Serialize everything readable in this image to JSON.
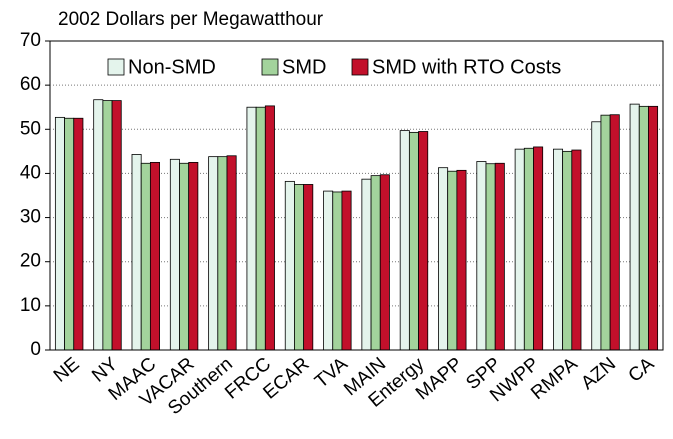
{
  "chart_data": {
    "type": "bar",
    "ylabel": "2002 Dollars per Megawatthour",
    "categories": [
      "NE",
      "NY",
      "MAAC",
      "VACAR",
      "Southern",
      "FRCC",
      "ECAR",
      "TVA",
      "MAIN",
      "Entergy",
      "MAPP",
      "SPP",
      "NWPP",
      "RMPA",
      "AZN",
      "CA"
    ],
    "series": [
      {
        "name": "Non-SMD",
        "color": "#e4f4ec",
        "values": [
          52.7,
          56.7,
          44.3,
          43.2,
          43.8,
          55.0,
          38.2,
          36.0,
          38.7,
          49.7,
          41.3,
          42.7,
          45.5,
          45.5,
          51.7,
          55.7
        ]
      },
      {
        "name": "SMD",
        "color": "#a3d39c",
        "values": [
          52.5,
          56.5,
          42.3,
          42.3,
          43.8,
          55.0,
          37.5,
          35.8,
          39.5,
          49.3,
          40.5,
          42.2,
          45.7,
          45.0,
          53.2,
          55.2
        ]
      },
      {
        "name": "SMD with RTO Costs",
        "color": "#c2102b",
        "values": [
          52.5,
          56.5,
          42.5,
          42.5,
          44.0,
          55.3,
          37.5,
          36.0,
          39.7,
          49.5,
          40.7,
          42.3,
          46.0,
          45.3,
          53.3,
          55.2
        ]
      }
    ],
    "ylim": [
      0,
      70
    ],
    "yticks": [
      0,
      10,
      20,
      30,
      40,
      50,
      60,
      70
    ],
    "grid": true,
    "legend": "top"
  }
}
